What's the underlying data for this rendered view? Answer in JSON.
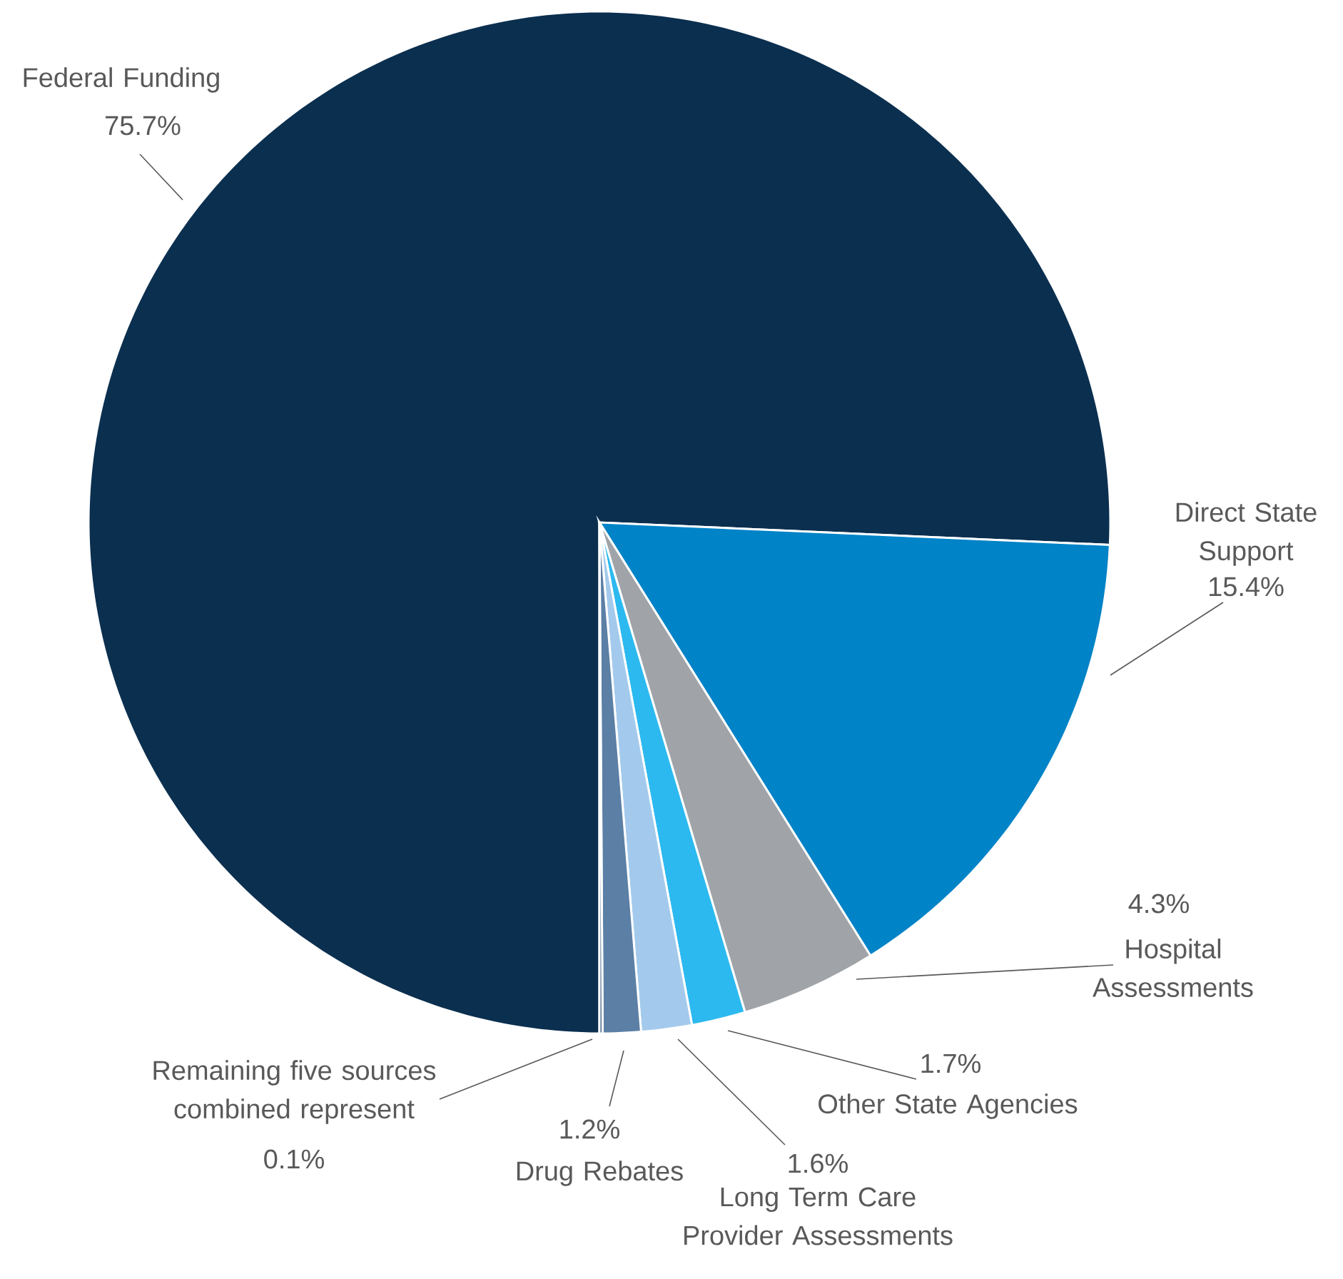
{
  "chart_data": {
    "type": "pie",
    "categories": [
      "Federal Funding",
      "Direct State Support",
      "Hospital Assessments",
      "Other State Agencies",
      "Long Term Care Provider Assessments",
      "Drug Rebates",
      "Remaining five sources combined represent"
    ],
    "values": [
      75.7,
      15.4,
      4.3,
      1.7,
      1.6,
      1.2,
      0.1
    ],
    "value_labels": [
      "75.7%",
      "15.4%",
      "4.3%",
      "1.7%",
      "1.6%",
      "1.2%",
      "0.1%"
    ],
    "colors": [
      "#0b2f4f",
      "#0083c7",
      "#a0a3a7",
      "#2cb9f0",
      "#a3caec",
      "#5b7fa5",
      "#3f5f80"
    ]
  }
}
